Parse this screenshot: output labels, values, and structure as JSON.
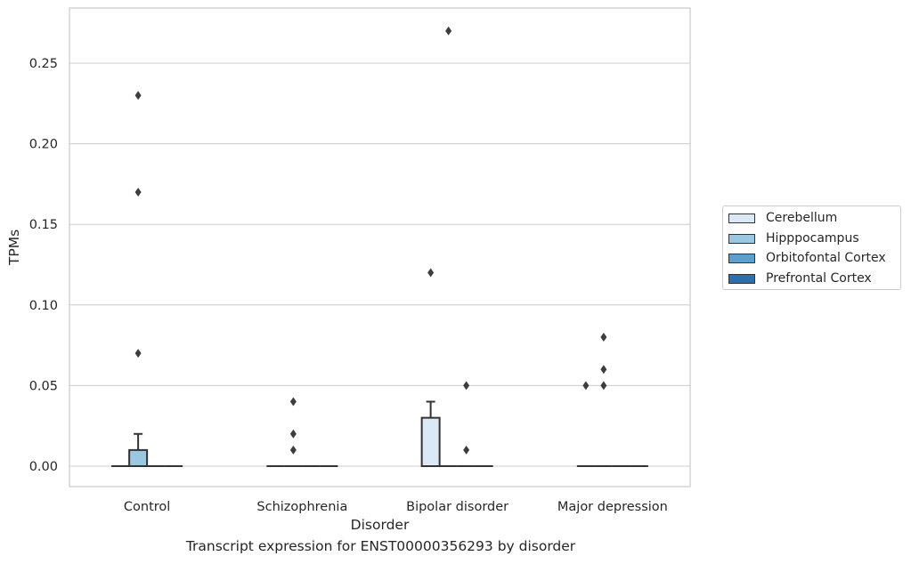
{
  "caption": "Transcript expression for ENST00000356293 by disorder",
  "chart_data": {
    "type": "box",
    "xlabel": "Disorder",
    "ylabel": "TPMs",
    "ylim": [
      -0.013,
      0.284
    ],
    "yticks": [
      0.0,
      0.05,
      0.1,
      0.15,
      0.2,
      0.25
    ],
    "ytick_labels": [
      "0.00",
      "0.05",
      "0.10",
      "0.15",
      "0.20",
      "0.25"
    ],
    "grid": "horizontal",
    "legend_position": "right",
    "categories": [
      "Control",
      "Schizophrenia",
      "Bipolar disorder",
      "Major depression"
    ],
    "series": [
      {
        "name": "Cerebellum",
        "color": "#dbe9f6",
        "boxes": [
          {
            "q1": 0,
            "median": 0,
            "q3": 0,
            "whislo": 0,
            "whishi": 0,
            "fliers": []
          },
          {
            "q1": 0,
            "median": 0,
            "q3": 0,
            "whislo": 0,
            "whishi": 0,
            "fliers": []
          },
          {
            "q1": 0,
            "median": 0,
            "q3": 0.03,
            "whislo": 0,
            "whishi": 0.04,
            "fliers": [
              0.12
            ]
          },
          {
            "q1": 0,
            "median": 0,
            "q3": 0,
            "whislo": 0,
            "whishi": 0,
            "fliers": [
              0.05
            ]
          }
        ]
      },
      {
        "name": "Hipppocampus",
        "color": "#9ac8e0",
        "boxes": [
          {
            "q1": 0,
            "median": 0,
            "q3": 0.01,
            "whislo": 0,
            "whishi": 0.02,
            "fliers": [
              0.07,
              0.17,
              0.23
            ]
          },
          {
            "q1": 0,
            "median": 0,
            "q3": 0,
            "whislo": 0,
            "whishi": 0,
            "fliers": [
              0.01,
              0.02,
              0.04
            ]
          },
          {
            "q1": 0,
            "median": 0,
            "q3": 0,
            "whislo": 0,
            "whishi": 0,
            "fliers": [
              0.27
            ]
          },
          {
            "q1": 0,
            "median": 0,
            "q3": 0,
            "whislo": 0,
            "whishi": 0,
            "fliers": [
              0.05,
              0.06,
              0.08
            ]
          }
        ]
      },
      {
        "name": "Orbitofontal Cortex",
        "color": "#5a9fcd",
        "boxes": [
          {
            "q1": 0,
            "median": 0,
            "q3": 0,
            "whislo": 0,
            "whishi": 0,
            "fliers": []
          },
          {
            "q1": 0,
            "median": 0,
            "q3": 0,
            "whislo": 0,
            "whishi": 0,
            "fliers": []
          },
          {
            "q1": 0,
            "median": 0,
            "q3": 0,
            "whislo": 0,
            "whishi": 0,
            "fliers": [
              0.01,
              0.05
            ]
          },
          {
            "q1": 0,
            "median": 0,
            "q3": 0,
            "whislo": 0,
            "whishi": 0,
            "fliers": []
          }
        ]
      },
      {
        "name": "Prefrontal Cortex",
        "color": "#2a6fb0",
        "boxes": [
          {
            "q1": 0,
            "median": 0,
            "q3": 0,
            "whislo": 0,
            "whishi": 0,
            "fliers": []
          },
          {
            "q1": 0,
            "median": 0,
            "q3": 0,
            "whislo": 0,
            "whishi": 0,
            "fliers": []
          },
          {
            "q1": 0,
            "median": 0,
            "q3": 0,
            "whislo": 0,
            "whishi": 0,
            "fliers": []
          },
          {
            "q1": 0,
            "median": 0,
            "q3": 0,
            "whislo": 0,
            "whishi": 0,
            "fliers": []
          }
        ]
      }
    ]
  },
  "legend": {
    "items": [
      {
        "label": "Cerebellum",
        "color": "#dbe9f6"
      },
      {
        "label": "Hipppocampus",
        "color": "#9ac8e0"
      },
      {
        "label": "Orbitofontal Cortex",
        "color": "#5a9fcd"
      },
      {
        "label": "Prefrontal Cortex",
        "color": "#2a6fb0"
      }
    ]
  }
}
